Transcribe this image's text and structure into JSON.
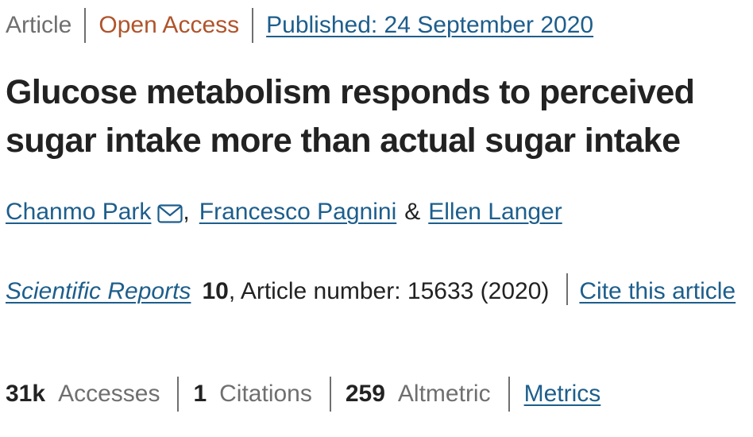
{
  "meta": {
    "type": "Article",
    "access": "Open Access",
    "published": "Published: 24 September 2020"
  },
  "article": {
    "title": "Glucose metabolism responds to perceived sugar intake more than actual sugar intake"
  },
  "authors": {
    "author1": "Chanmo Park",
    "comma": ",",
    "author2": "Francesco Pagnini",
    "amp": "&",
    "author3": "Ellen Langer"
  },
  "journal": {
    "name": "Scientific Reports",
    "volume": "10",
    "details": ", Article number: 15633 (2020)",
    "cite_label": "Cite this article"
  },
  "metrics": {
    "accesses_value": "31k",
    "accesses_label": "Accesses",
    "citations_value": "1",
    "citations_label": "Citations",
    "altmetric_value": "259",
    "altmetric_label": "Altmetric",
    "metrics_link": "Metrics"
  },
  "icons": {
    "mail": "mail-icon"
  },
  "colors": {
    "link": "#1d5e8c",
    "open_access": "#b0542b",
    "muted": "#6f6f6f",
    "text": "#222222"
  }
}
